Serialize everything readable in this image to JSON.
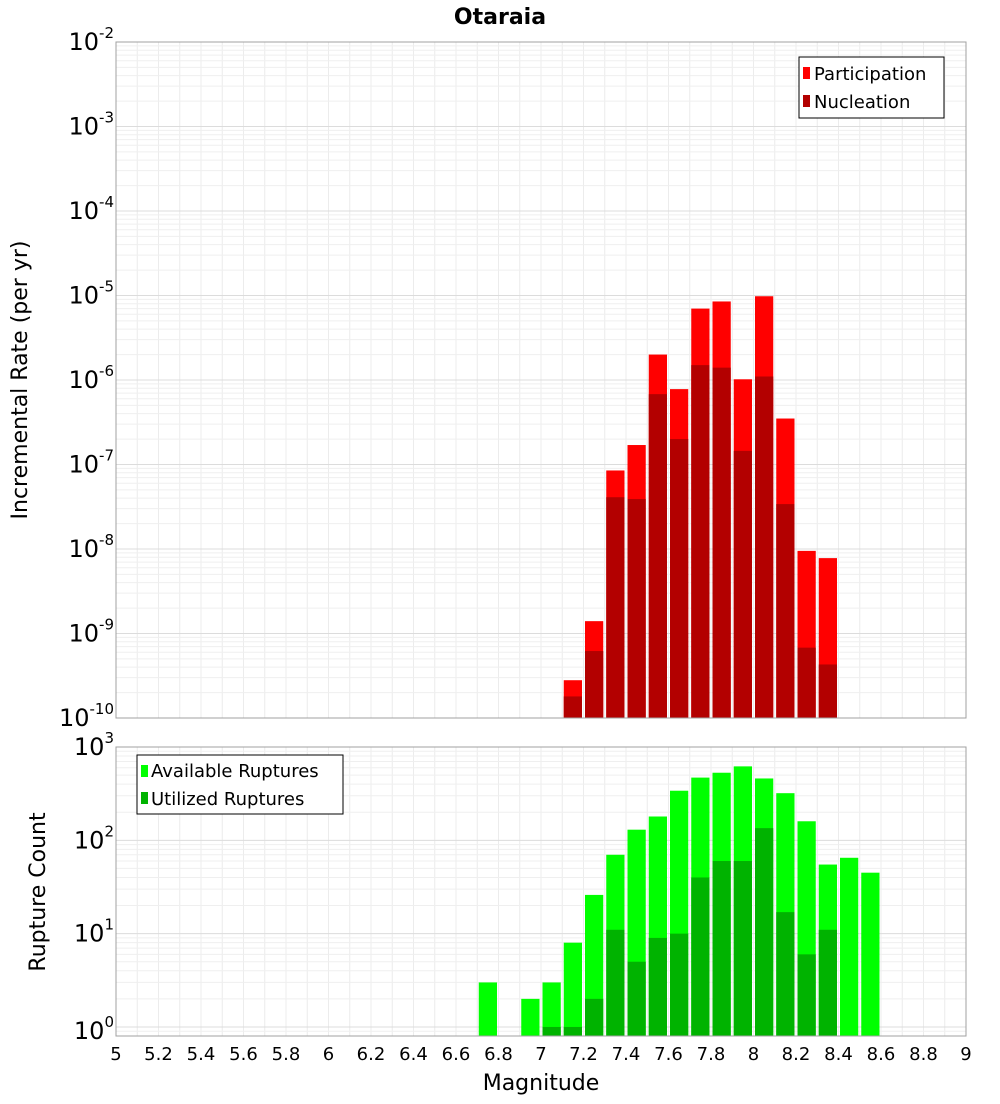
{
  "chart_data": [
    {
      "type": "bar",
      "title": "Otaraia",
      "xlabel": "",
      "ylabel": "Incremental Rate (per yr)",
      "yscale": "log",
      "xlim": [
        5,
        9
      ],
      "ylim": [
        1e-10,
        0.01
      ],
      "y_tick_exponents": [
        "-10",
        "-9",
        "-8",
        "-7",
        "-6",
        "-5",
        "-4",
        "-3",
        "-2"
      ],
      "grid": true,
      "legend_placement": "top-right",
      "legend": [
        "Participation",
        "Nucleation"
      ],
      "bin_width": 0.1,
      "x": [
        7.15,
        7.25,
        7.35,
        7.45,
        7.55,
        7.65,
        7.75,
        7.85,
        7.95,
        8.05,
        8.15,
        8.25,
        8.35
      ],
      "series": [
        {
          "name": "Participation",
          "color": "#ff0000",
          "values": [
            2.8e-10,
            1.4e-09,
            8.5e-08,
            1.7e-07,
            2e-06,
            7.8e-07,
            7e-06,
            8.5e-06,
            1.02e-06,
            9.8e-06,
            3.5e-07,
            9.5e-09,
            7.8e-09
          ]
        },
        {
          "name": "Nucleation",
          "color": "#b30000",
          "values": [
            1.8e-10,
            6.2e-10,
            4.1e-08,
            3.9e-08,
            6.8e-07,
            2e-07,
            1.5e-06,
            1.4e-06,
            1.45e-07,
            1.1e-06,
            3.4e-08,
            6.8e-10,
            4.3e-10
          ]
        }
      ]
    },
    {
      "type": "bar",
      "title": "",
      "xlabel": "Magnitude",
      "ylabel": "Rupture Count",
      "yscale": "log",
      "xlim": [
        5,
        9
      ],
      "ylim": [
        0.8,
        1000
      ],
      "y_tick_exponents": [
        "0",
        "1",
        "2",
        "3"
      ],
      "x_ticks": [
        "5",
        "5.2",
        "5.4",
        "5.6",
        "5.8",
        "6",
        "6.2",
        "6.4",
        "6.6",
        "6.8",
        "7",
        "7.2",
        "7.4",
        "7.6",
        "7.8",
        "8",
        "8.2",
        "8.4",
        "8.6",
        "8.8",
        "9"
      ],
      "grid": true,
      "legend_placement": "top-left",
      "legend": [
        "Available Ruptures",
        "Utilized Ruptures"
      ],
      "bin_width": 0.1,
      "x": [
        6.75,
        6.95,
        7.05,
        7.15,
        7.25,
        7.35,
        7.45,
        7.55,
        7.65,
        7.75,
        7.85,
        7.95,
        8.05,
        8.15,
        8.25,
        8.35,
        8.45,
        8.55
      ],
      "series": [
        {
          "name": "Available Ruptures",
          "color": "#00ff00",
          "values": [
            3,
            2,
            3,
            8,
            26,
            70,
            130,
            180,
            340,
            470,
            530,
            620,
            460,
            320,
            160,
            55,
            65,
            45
          ]
        },
        {
          "name": "Utilized Ruptures",
          "color": "#00b300",
          "values": [
            0,
            0,
            1,
            1,
            2,
            11,
            5,
            9,
            10,
            40,
            60,
            60,
            135,
            17,
            6,
            11,
            0,
            0
          ]
        }
      ]
    }
  ]
}
